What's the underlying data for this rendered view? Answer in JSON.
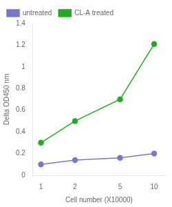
{
  "chart_data": {
    "type": "line",
    "x": [
      1,
      2,
      5,
      10
    ],
    "series": [
      {
        "name": "untreated",
        "color": "#7777CC",
        "values": [
          0.1,
          0.14,
          0.16,
          0.2
        ]
      },
      {
        "name": "CL-A treated",
        "color": "#22AA22",
        "values": [
          0.3,
          0.5,
          0.7,
          1.21
        ]
      }
    ],
    "xlabel": "Cell number (X10000)",
    "ylabel": "Delta OD450 nm",
    "xlim": [
      0.85,
      12.5
    ],
    "xticks": [
      1,
      2,
      5,
      10
    ],
    "ylim": [
      0,
      1.4
    ],
    "yticks": [
      0,
      0.2,
      0.4,
      0.6,
      0.8,
      1,
      1.2,
      1.4
    ],
    "log": "x",
    "grid": false,
    "legend": "upper left",
    "marker": "circle"
  }
}
